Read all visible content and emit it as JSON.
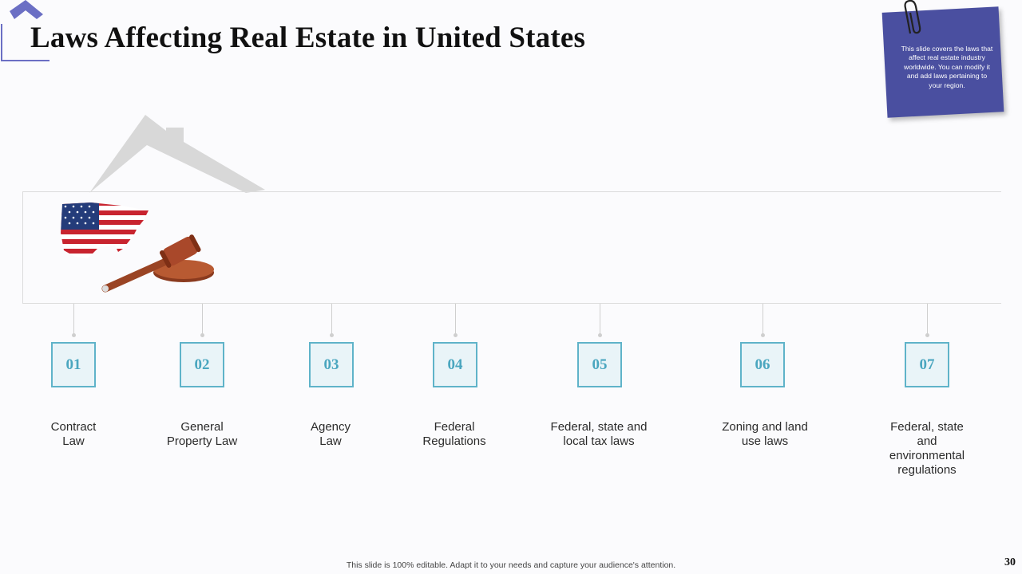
{
  "slide": {
    "title": "Laws Affecting Real Estate in United States",
    "note": "This slide covers the laws that affect real estate industry worldwide.  You can modify it and add laws pertaining to your region.",
    "footer": "This slide is 100% editable. Adapt it to your needs and capture your audience's attention.",
    "page_number": "30"
  },
  "timeline": {
    "items": [
      {
        "number": "01",
        "label": "Contract\nLaw"
      },
      {
        "number": "02",
        "label": "General\nProperty Law"
      },
      {
        "number": "03",
        "label": "Agency\nLaw"
      },
      {
        "number": "04",
        "label": "Federal\nRegulations"
      },
      {
        "number": "05",
        "label": "Federal, state and\nlocal tax laws"
      },
      {
        "number": "06",
        "label": "Zoning and land\nuse laws"
      },
      {
        "number": "07",
        "label": "Federal, state\nand\nenvironmental\nregulations"
      }
    ]
  },
  "icons": {
    "corner": "house-outline-icon",
    "clip": "paperclip-icon",
    "roof": "house-roof-icon",
    "flag": "us-flag-map-icon",
    "gavel": "gavel-icon"
  },
  "colors": {
    "accent": "#5fb3c9",
    "note_bg": "#4a4fa0",
    "corner_logo": "#6b6fc4"
  }
}
